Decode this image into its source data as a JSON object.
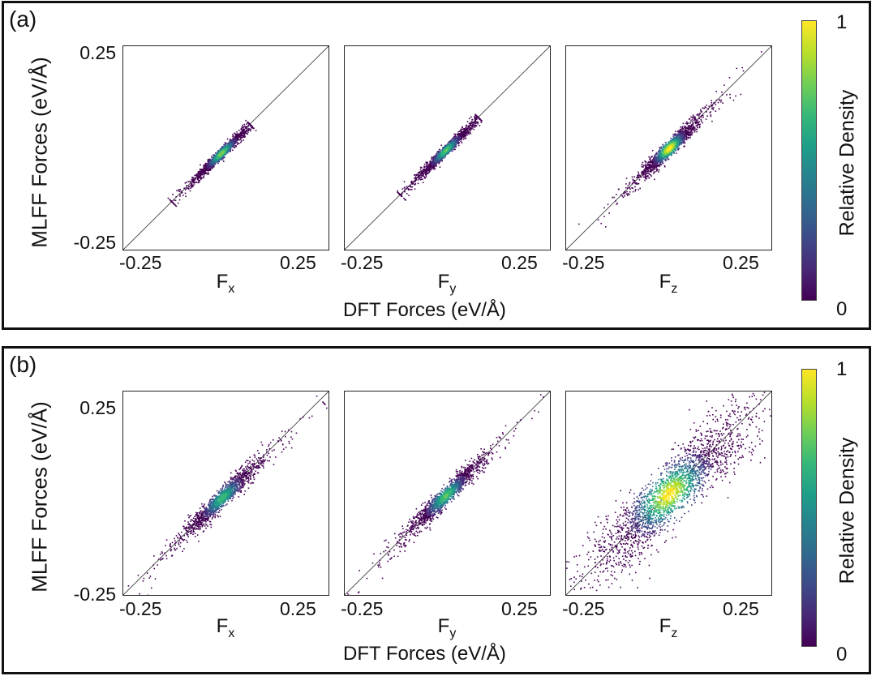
{
  "chart_data": [
    {
      "type": "scatter",
      "panel_label": "(a)",
      "ylabel": "MLFF Forces (eV/Å)",
      "xlabel": "DFT Forces (eV/Å)",
      "ylim": [
        -0.25,
        0.25
      ],
      "xlim": [
        -0.25,
        0.25
      ],
      "ytick_labels": [
        "0.25",
        "-0.25"
      ],
      "xtick_labels": [
        "-0.25",
        "0.25"
      ],
      "subplots": [
        {
          "component": "F",
          "subscript": "x",
          "center": [
            -0.012,
            -0.012
          ],
          "spread_along": 0.045,
          "spread_across": 0.0045,
          "extent": [
            -0.12,
            0.07
          ],
          "peak": 0.8
        },
        {
          "component": "F",
          "subscript": "y",
          "center": [
            -0.005,
            -0.005
          ],
          "spread_along": 0.045,
          "spread_across": 0.0045,
          "extent": [
            -0.11,
            0.08
          ],
          "peak": 0.75
        },
        {
          "component": "F",
          "subscript": "z",
          "center": [
            0.0,
            0.0
          ],
          "spread_along": 0.045,
          "spread_across": 0.007,
          "extent": [
            -0.25,
            0.25
          ],
          "peak": 1.0
        }
      ],
      "colorbar": {
        "label": "Relative Density",
        "min_label": "0",
        "max_label": "1"
      }
    },
    {
      "type": "scatter",
      "panel_label": "(b)",
      "ylabel": "MLFF Forces (eV/Å)",
      "xlabel": "DFT Forces (eV/Å)",
      "ylim": [
        -0.25,
        0.25
      ],
      "xlim": [
        -0.25,
        0.25
      ],
      "ytick_labels": [
        "0.25",
        "-0.25"
      ],
      "xtick_labels": [
        "-0.25",
        "0.25"
      ],
      "subplots": [
        {
          "component": "F",
          "subscript": "x",
          "center": [
            -0.01,
            -0.01
          ],
          "spread_along": 0.06,
          "spread_across": 0.008,
          "extent": [
            -0.24,
            0.24
          ],
          "peak": 0.7
        },
        {
          "component": "F",
          "subscript": "y",
          "center": [
            -0.005,
            -0.005
          ],
          "spread_along": 0.06,
          "spread_across": 0.008,
          "extent": [
            -0.24,
            0.24
          ],
          "peak": 0.75
        },
        {
          "component": "F",
          "subscript": "z",
          "center": [
            0.0,
            0.0
          ],
          "spread_along": 0.11,
          "spread_across": 0.022,
          "extent": [
            -0.25,
            0.25
          ],
          "peak": 1.0
        }
      ],
      "colorbar": {
        "label": "Relative Density",
        "min_label": "0",
        "max_label": "1"
      }
    }
  ]
}
